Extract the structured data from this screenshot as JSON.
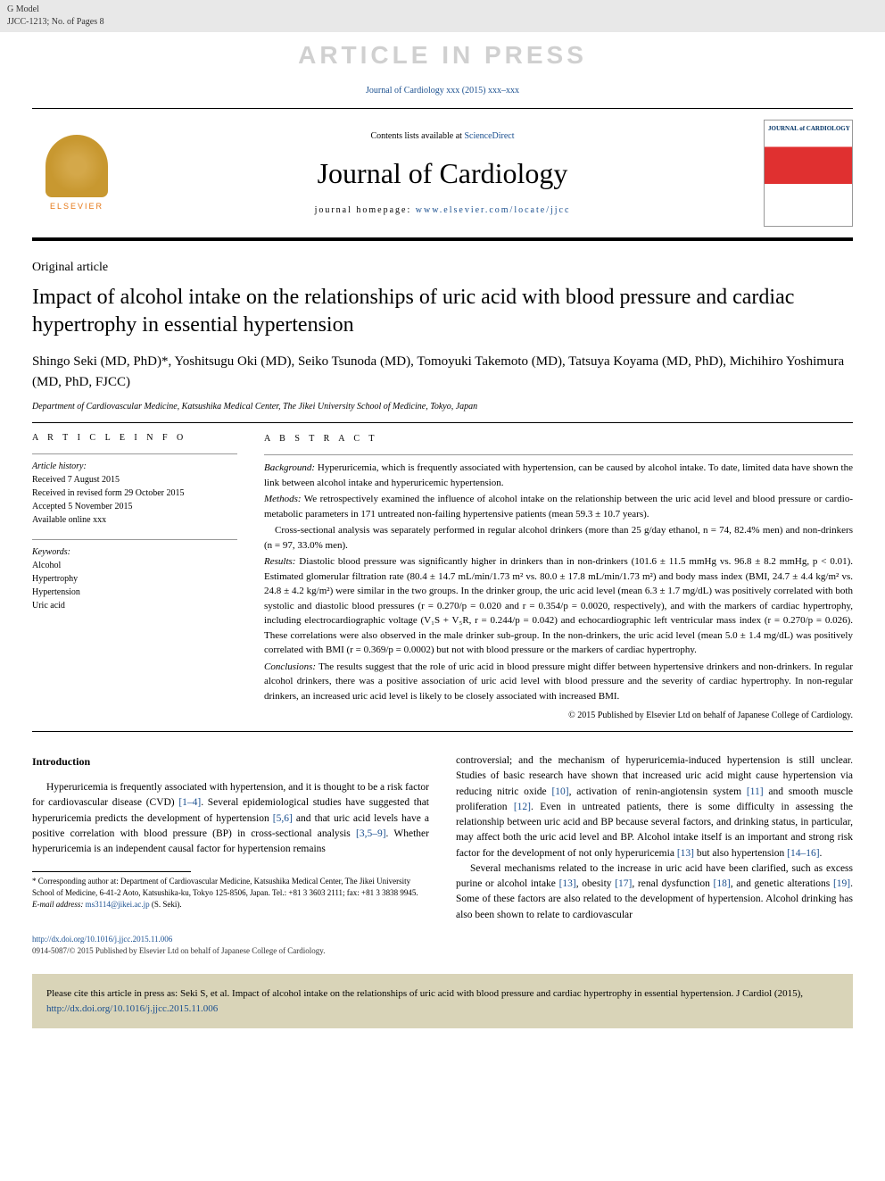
{
  "header": {
    "gmodel": "G Model",
    "ref": "JJCC-1213; No. of Pages 8",
    "watermark": "ARTICLE IN PRESS",
    "journal_link": "Journal of Cardiology xxx (2015) xxx–xxx",
    "contents_prefix": "Contents lists available at ",
    "contents_link": "ScienceDirect",
    "journal_title": "Journal of Cardiology",
    "homepage_prefix": "journal homepage: ",
    "homepage_link": "www.elsevier.com/locate/jjcc",
    "elsevier": "ELSEVIER",
    "cover_title": "JOURNAL of CARDIOLOGY"
  },
  "article": {
    "type": "Original article",
    "title": "Impact of alcohol intake on the relationships of uric acid with blood pressure and cardiac hypertrophy in essential hypertension",
    "authors": "Shingo Seki (MD, PhD)*, Yoshitsugu Oki (MD), Seiko Tsunoda (MD), Tomoyuki Takemoto (MD), Tatsuya Koyama (MD, PhD), Michihiro Yoshimura (MD, PhD, FJCC)",
    "affiliation": "Department of Cardiovascular Medicine, Katsushika Medical Center, The Jikei University School of Medicine, Tokyo, Japan"
  },
  "info": {
    "heading": "A R T I C L E   I N F O",
    "history_label": "Article history:",
    "received": "Received 7 August 2015",
    "revised": "Received in revised form 29 October 2015",
    "accepted": "Accepted 5 November 2015",
    "online": "Available online xxx",
    "keywords_label": "Keywords:",
    "kw1": "Alcohol",
    "kw2": "Hypertrophy",
    "kw3": "Hypertension",
    "kw4": "Uric acid"
  },
  "abstract": {
    "heading": "A B S T R A C T",
    "background_label": "Background:",
    "background": " Hyperuricemia, which is frequently associated with hypertension, can be caused by alcohol intake. To date, limited data have shown the link between alcohol intake and hyperuricemic hypertension.",
    "methods_label": "Methods:",
    "methods": " We retrospectively examined the influence of alcohol intake on the relationship between the uric acid level and blood pressure or cardio-metabolic parameters in 171 untreated non-failing hypertensive patients (mean 59.3 ± 10.7 years).",
    "methods2": "Cross-sectional analysis was separately performed in regular alcohol drinkers (more than 25 g/day ethanol, n = 74, 82.4% men) and non-drinkers (n = 97, 33.0% men).",
    "results_label": "Results:",
    "results": " Diastolic blood pressure was significantly higher in drinkers than in non-drinkers (101.6 ± 11.5 mmHg vs. 96.8 ± 8.2 mmHg, p < 0.01). Estimated glomerular filtration rate (80.4 ± 14.7 mL/min/1.73 m² vs. 80.0 ± 17.8 mL/min/1.73 m²) and body mass index (BMI, 24.7 ± 4.4 kg/m² vs. 24.8 ± 4.2 kg/m²) were similar in the two groups. In the drinker group, the uric acid level (mean 6.3 ± 1.7 mg/dL) was positively correlated with both systolic and diastolic blood pressures (r = 0.270/p = 0.020 and r = 0.354/p = 0.0020, respectively), and with the markers of cardiac hypertrophy, including electrocardiographic voltage (V₁S + V₅R, r = 0.244/p = 0.042) and echocardiographic left ventricular mass index (r = 0.270/p = 0.026). These correlations were also observed in the male drinker sub-group. In the non-drinkers, the uric acid level (mean 5.0 ± 1.4 mg/dL) was positively correlated with BMI (r = 0.369/p = 0.0002) but not with blood pressure or the markers of cardiac hypertrophy.",
    "conclusions_label": "Conclusions:",
    "conclusions": " The results suggest that the role of uric acid in blood pressure might differ between hypertensive drinkers and non-drinkers. In regular alcohol drinkers, there was a positive association of uric acid level with blood pressure and the severity of cardiac hypertrophy. In non-regular drinkers, an increased uric acid level is likely to be closely associated with increased BMI.",
    "copyright": "© 2015 Published by Elsevier Ltd on behalf of Japanese College of Cardiology."
  },
  "intro": {
    "heading": "Introduction",
    "p1a": "Hyperuricemia is frequently associated with hypertension, and it is thought to be a risk factor for cardiovascular disease (CVD) ",
    "ref1": "[1–4]",
    "p1b": ". Several epidemiological studies have suggested that hyperuricemia predicts the development of hypertension ",
    "ref2": "[5,6]",
    "p1c": " and that uric acid levels have a positive correlation with blood pressure (BP) in cross-sectional analysis ",
    "ref3": "[3,5–9]",
    "p1d": ". Whether hyperuricemia is an independent causal factor for hypertension remains",
    "p2a": "controversial; and the mechanism of hyperuricemia-induced hypertension is still unclear. Studies of basic research have shown that increased uric acid might cause hypertension via reducing nitric oxide ",
    "ref4": "[10]",
    "p2b": ", activation of renin-angiotensin system ",
    "ref5": "[11]",
    "p2c": " and smooth muscle proliferation ",
    "ref6": "[12]",
    "p2d": ". Even in untreated patients, there is some difficulty in assessing the relationship between uric acid and BP because several factors, and drinking status, in particular, may affect both the uric acid level and BP. Alcohol intake itself is an important and strong risk factor for the development of not only hyperuricemia ",
    "ref7": "[13]",
    "p2e": " but also hypertension ",
    "ref8": "[14–16]",
    "p2f": ".",
    "p3a": "Several mechanisms related to the increase in uric acid have been clarified, such as excess purine or alcohol intake ",
    "ref9": "[13]",
    "p3b": ", obesity ",
    "ref10": "[17]",
    "p3c": ", renal dysfunction ",
    "ref11": "[18]",
    "p3d": ", and genetic alterations ",
    "ref12": "[19]",
    "p3e": ". Some of these factors are also related to the development of hypertension. Alcohol drinking has also been shown to relate to cardiovascular"
  },
  "footnote": {
    "corr": "* Corresponding author at: Department of Cardiovascular Medicine, Katsushika Medical Center, The Jikei University School of Medicine, 6-41-2 Aoto, Katsushika-ku, Tokyo 125-8506, Japan. Tel.: +81 3 3603 2111; fax: +81 3 3838 9945.",
    "email_label": "E-mail address: ",
    "email": "ms3114@jikei.ac.jp",
    "email_suffix": " (S. Seki)."
  },
  "doi": {
    "url": "http://dx.doi.org/10.1016/j.jjcc.2015.11.006",
    "issn": "0914-5087/© 2015 Published by Elsevier Ltd on behalf of Japanese College of Cardiology."
  },
  "citation": {
    "text": "Please cite this article in press as: Seki S, et al. Impact of alcohol intake on the relationships of uric acid with blood pressure and cardiac hypertrophy in essential hypertension. J Cardiol (2015), ",
    "link": "http://dx.doi.org/10.1016/j.jjcc.2015.11.006"
  }
}
